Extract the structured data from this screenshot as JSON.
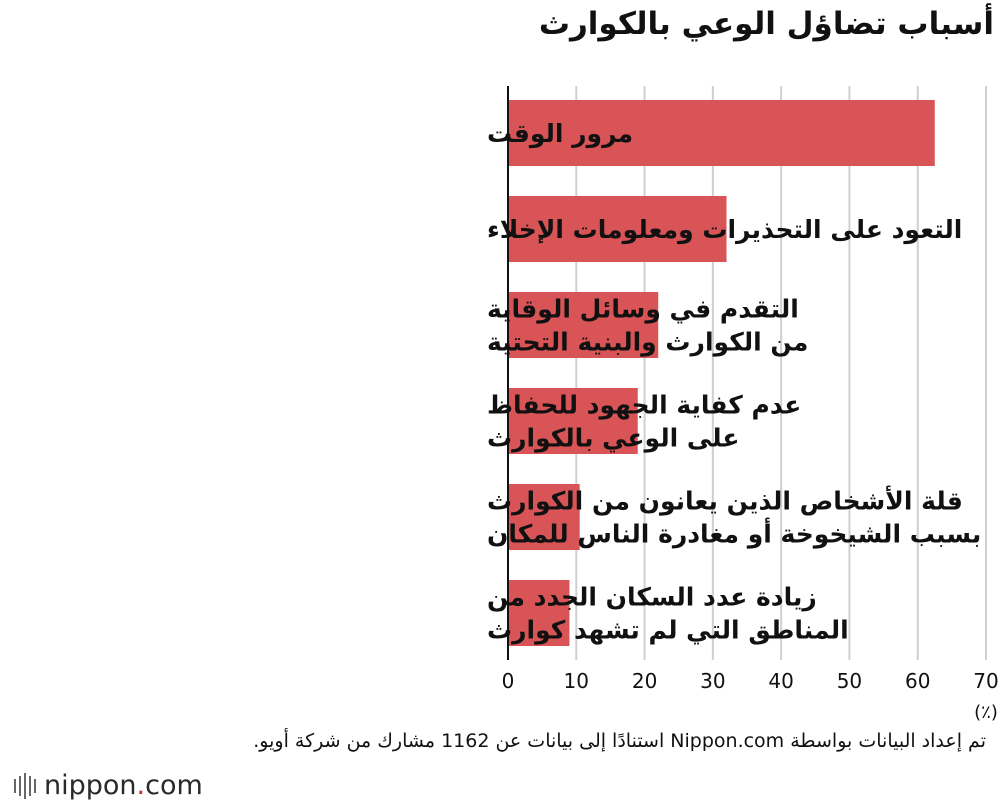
{
  "source_note": "تم إعداد البيانات بواسطة Nippon.com استنادًا إلى بيانات عن 1162 مشارك من شركة أويو.",
  "brand": {
    "name": "nippon",
    "dot": ".",
    "suffix": "com"
  },
  "colors": {
    "bar": "#d95456",
    "grid": "#cfcfcf",
    "axis": "#111111"
  },
  "chart_data": {
    "type": "bar",
    "orientation": "horizontal",
    "title": "أسباب تضاؤل الوعي بالكوارث",
    "xlabel": "(٪)",
    "ylabel": "",
    "xlim": [
      0,
      70
    ],
    "xticks": [
      0,
      10,
      20,
      30,
      40,
      50,
      60,
      70
    ],
    "grid": true,
    "categories": [
      [
        "مرور الوقت"
      ],
      [
        "التعود على التحذيرات ومعلومات الإخلاء"
      ],
      [
        "التقدم في وسائل الوقاية",
        "من الكوارث والبنية التحتية"
      ],
      [
        "عدم كفاية الجهود للحفاظ",
        "على الوعي بالكوارث"
      ],
      [
        "قلة الأشخاص الذين يعانون من الكوارث",
        "بسبب الشيخوخة أو مغادرة الناس للمكان"
      ],
      [
        "زيادة عدد السكان الجدد من",
        "المناطق التي لم تشهد كوارث"
      ]
    ],
    "values": [
      62.5,
      32,
      22,
      19,
      10.5,
      9
    ]
  }
}
